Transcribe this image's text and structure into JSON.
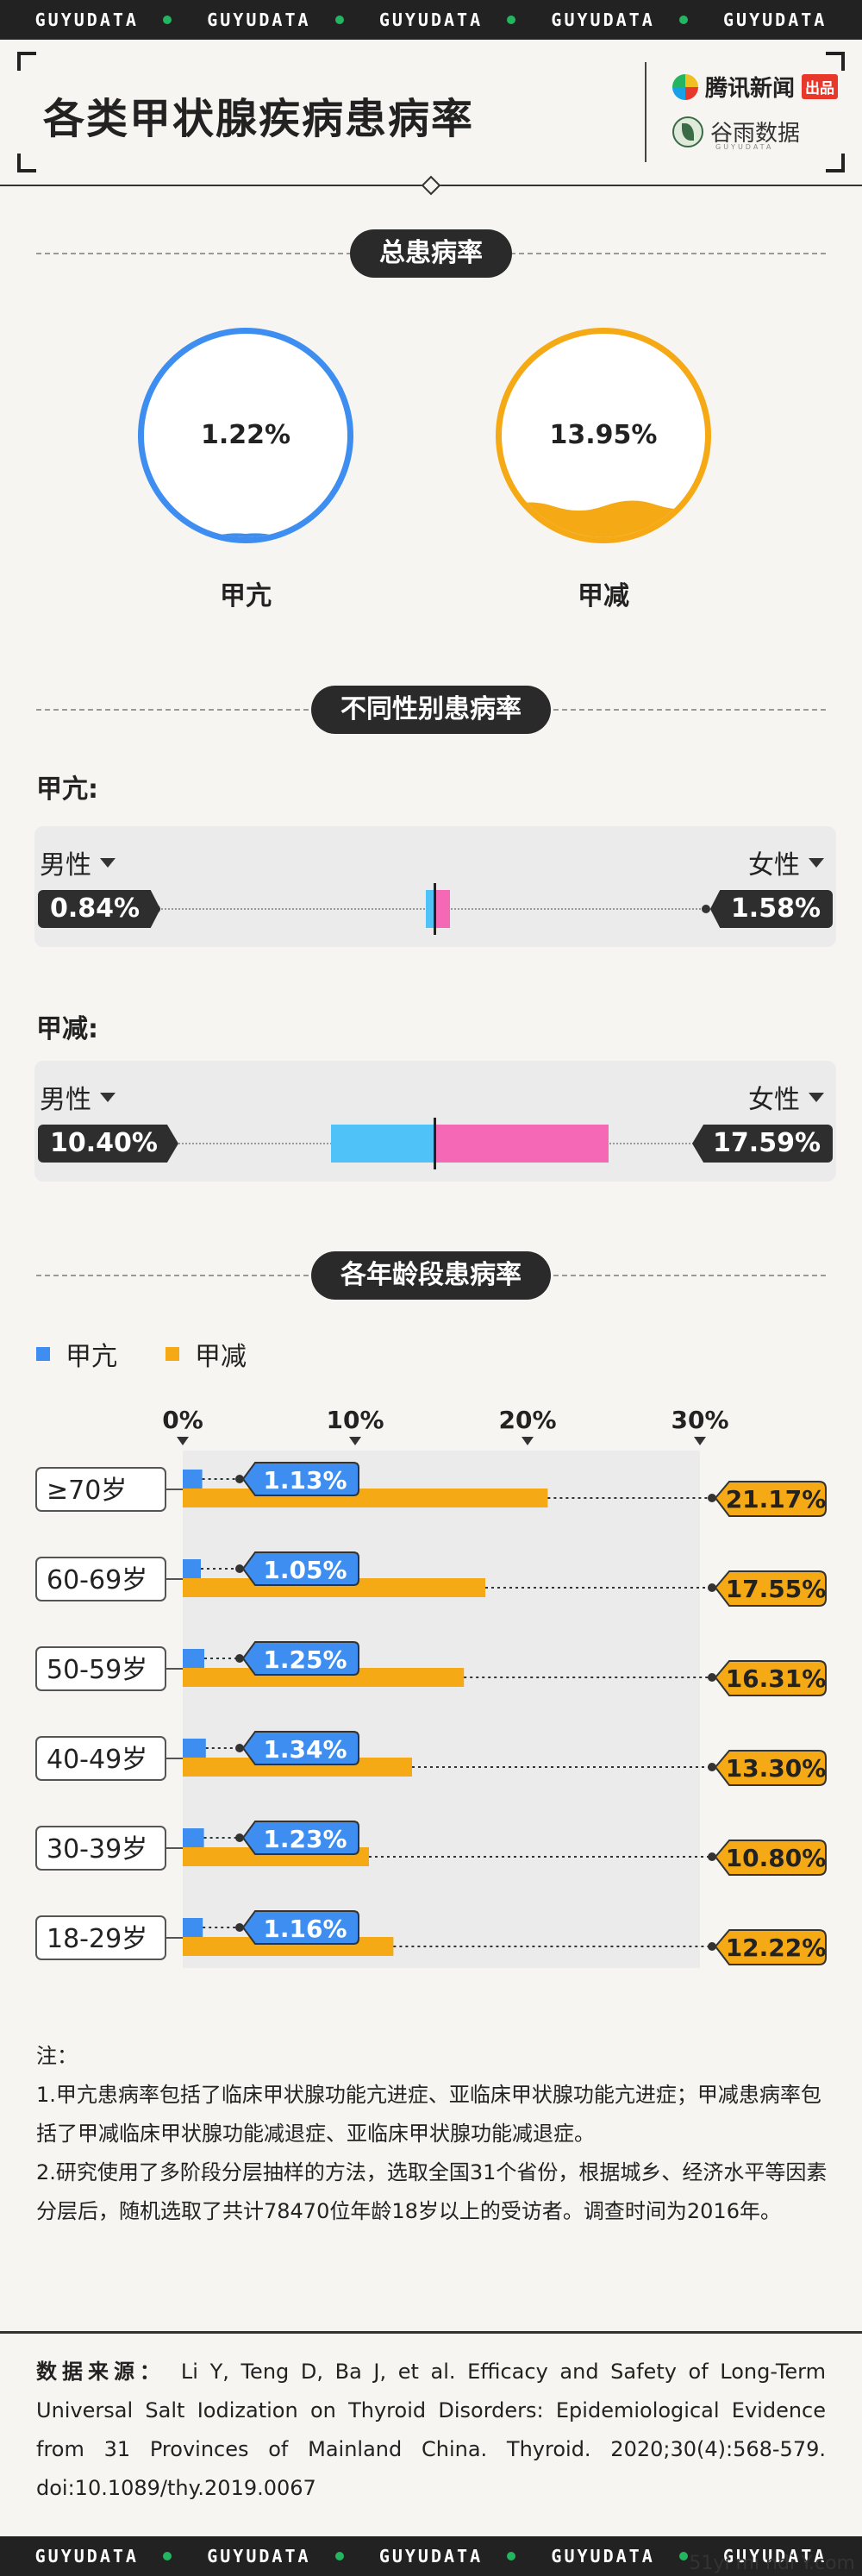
{
  "band": {
    "items": [
      "GUYUDATA",
      "GUYUDATA",
      "GUYUDATA",
      "GUYUDATA",
      "GUYUDATA"
    ]
  },
  "header": {
    "title": "各类甲状腺疾病患病率",
    "brand1": "腾讯新闻",
    "brand1_tag": "出品",
    "brand2": "谷雨数据",
    "brand2_sub": "GUYUDATA"
  },
  "sections": {
    "total": "总患病率",
    "gender": "不同性别患病率",
    "age": "各年龄段患病率"
  },
  "total": [
    {
      "label": "甲亢",
      "value_text": "1.22%",
      "value": 1.22,
      "color": "#3d8ef0"
    },
    {
      "label": "甲减",
      "value_text": "13.95%",
      "value": 13.95,
      "color": "#f5a915"
    }
  ],
  "gender": {
    "male_label": "男性",
    "female_label": "女性",
    "groups": [
      {
        "title": "甲亢:",
        "male_text": "0.84%",
        "female_text": "1.58%",
        "male": 0.84,
        "female": 1.58
      },
      {
        "title": "甲减:",
        "male_text": "10.40%",
        "female_text": "17.59%",
        "male": 10.4,
        "female": 17.59
      }
    ],
    "male_color": "#4fc3f7",
    "female_color": "#f568b5"
  },
  "chart_data": {
    "type": "bar",
    "orientation": "horizontal",
    "categories": [
      "≥70岁",
      "60-69岁",
      "50-59岁",
      "40-49岁",
      "30-39岁",
      "18-29岁"
    ],
    "series": [
      {
        "name": "甲亢",
        "color": "#3d8ef0",
        "values": [
          1.13,
          1.05,
          1.25,
          1.34,
          1.23,
          1.16
        ],
        "labels": [
          "1.13%",
          "1.05%",
          "1.25%",
          "1.34%",
          "1.23%",
          "1.16%"
        ]
      },
      {
        "name": "甲减",
        "color": "#f5a915",
        "values": [
          21.17,
          17.55,
          16.31,
          13.3,
          10.8,
          12.22
        ],
        "labels": [
          "21.17%",
          "17.55%",
          "16.31%",
          "13.30%",
          "10.80%",
          "12.22%"
        ]
      }
    ],
    "ticks": [
      "0%",
      "10%",
      "20%",
      "30%"
    ],
    "tick_values": [
      0,
      10,
      20,
      30
    ],
    "xlim": [
      0,
      30
    ],
    "grid": false,
    "legend": "top-left"
  },
  "notes": {
    "heading": "注：",
    "items": [
      "1.甲亢患病率包括了临床甲状腺功能亢进症、亚临床甲状腺功能亢进症；甲减患病率包括了甲减临床甲状腺功能减退症、亚临床甲状腺功能减退症。",
      "2.研究使用了多阶段分层抽样的方法，选取全国31个省份，根据城乡、经济水平等因素分层后，随机选取了共计78470位年龄18岁以上的受访者。调查时间为2016年。"
    ]
  },
  "source": {
    "label": "数据来源：",
    "text": "Li Y, Teng D, Ba J, et al. Efficacy and Safety of Long-Term Universal Salt Iodization on Thyroid Disorders: Epidemiological Evidence from 31 Provinces of Mainland China. Thyroid. 2020;30(4):568-579. doi:10.1089/thy.2019.0067"
  },
  "watermark": "51yi mi ndi Y.com"
}
